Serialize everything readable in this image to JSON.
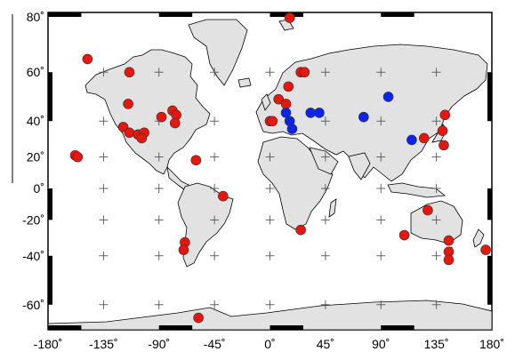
{
  "map": {
    "projection": "mercator",
    "land_color": "#e2e2e2",
    "coast_color": "#000000",
    "marker_colors": {
      "red": "#e8170e",
      "blue": "#0c22ee"
    },
    "lon_ticks": [
      {
        "label": "-180˚",
        "lon": -180
      },
      {
        "label": "-135˚",
        "lon": -135
      },
      {
        "label": "-90˚",
        "lon": -90
      },
      {
        "label": "-45˚",
        "lon": -45
      },
      {
        "label": "0˚",
        "lon": 0
      },
      {
        "label": "45˚",
        "lon": 45
      },
      {
        "label": "90˚",
        "lon": 90
      },
      {
        "label": "135˚",
        "lon": 135
      },
      {
        "label": "180˚",
        "lon": 180
      }
    ],
    "lat_ticks": [
      {
        "label": "80˚",
        "lat": 80
      },
      {
        "label": "60˚",
        "lat": 60
      },
      {
        "label": "40˚",
        "lat": 40
      },
      {
        "label": "20˚",
        "lat": 20
      },
      {
        "label": "0˚",
        "lat": 0
      },
      {
        "label": "-20˚",
        "lat": -20
      },
      {
        "label": "-40˚",
        "lat": -40
      },
      {
        "label": "-60˚",
        "lat": -60
      }
    ],
    "grid_crosses": true,
    "stations": [
      {
        "lon": -148,
        "lat": 64,
        "color": "red"
      },
      {
        "lon": -114,
        "lat": 60,
        "color": "red"
      },
      {
        "lon": -115,
        "lat": 48,
        "color": "red"
      },
      {
        "lon": -119,
        "lat": 37,
        "color": "red"
      },
      {
        "lon": -114,
        "lat": 34,
        "color": "red"
      },
      {
        "lon": -107,
        "lat": 33,
        "color": "red"
      },
      {
        "lon": -102,
        "lat": 34,
        "color": "red"
      },
      {
        "lon": -104,
        "lat": 31,
        "color": "red"
      },
      {
        "lon": -88,
        "lat": 42,
        "color": "red"
      },
      {
        "lon": -79,
        "lat": 45,
        "color": "red"
      },
      {
        "lon": -76,
        "lat": 43,
        "color": "red"
      },
      {
        "lon": -77,
        "lat": 39,
        "color": "red"
      },
      {
        "lon": -60,
        "lat": 18,
        "color": "red"
      },
      {
        "lon": -158,
        "lat": 21,
        "color": "red"
      },
      {
        "lon": -156,
        "lat": 20,
        "color": "red"
      },
      {
        "lon": -38,
        "lat": -5,
        "color": "red"
      },
      {
        "lon": -69,
        "lat": -33,
        "color": "red"
      },
      {
        "lon": -70,
        "lat": -37,
        "color": "red"
      },
      {
        "lon": -58,
        "lat": -64,
        "color": "red"
      },
      {
        "lon": 16,
        "lat": 78,
        "color": "red"
      },
      {
        "lon": 25,
        "lat": 60,
        "color": "red"
      },
      {
        "lon": 28,
        "lat": 60,
        "color": "red"
      },
      {
        "lon": 15,
        "lat": 55,
        "color": "red"
      },
      {
        "lon": 7,
        "lat": 50,
        "color": "red"
      },
      {
        "lon": 13,
        "lat": 48,
        "color": "red"
      },
      {
        "lon": 0,
        "lat": 40,
        "color": "red"
      },
      {
        "lon": 2,
        "lat": 40,
        "color": "red"
      },
      {
        "lon": 25,
        "lat": -26,
        "color": "red"
      },
      {
        "lon": 13,
        "lat": 44,
        "color": "blue"
      },
      {
        "lon": 16,
        "lat": 40,
        "color": "blue"
      },
      {
        "lon": 18,
        "lat": 36,
        "color": "blue"
      },
      {
        "lon": 33,
        "lat": 44,
        "color": "blue"
      },
      {
        "lon": 40,
        "lat": 44,
        "color": "blue"
      },
      {
        "lon": 76,
        "lat": 42,
        "color": "blue"
      },
      {
        "lon": 96,
        "lat": 51,
        "color": "blue"
      },
      {
        "lon": 115,
        "lat": 30,
        "color": "blue"
      },
      {
        "lon": 125,
        "lat": 31,
        "color": "red"
      },
      {
        "lon": 142,
        "lat": 43,
        "color": "red"
      },
      {
        "lon": 140,
        "lat": 35,
        "color": "red"
      },
      {
        "lon": 141,
        "lat": 27,
        "color": "red"
      },
      {
        "lon": 128,
        "lat": -14,
        "color": "red"
      },
      {
        "lon": 109,
        "lat": -29,
        "color": "red"
      },
      {
        "lon": 145,
        "lat": -32,
        "color": "red"
      },
      {
        "lon": 145,
        "lat": -38,
        "color": "red"
      },
      {
        "lon": 145,
        "lat": -42,
        "color": "red"
      },
      {
        "lon": 175,
        "lat": -37,
        "color": "red"
      }
    ]
  }
}
